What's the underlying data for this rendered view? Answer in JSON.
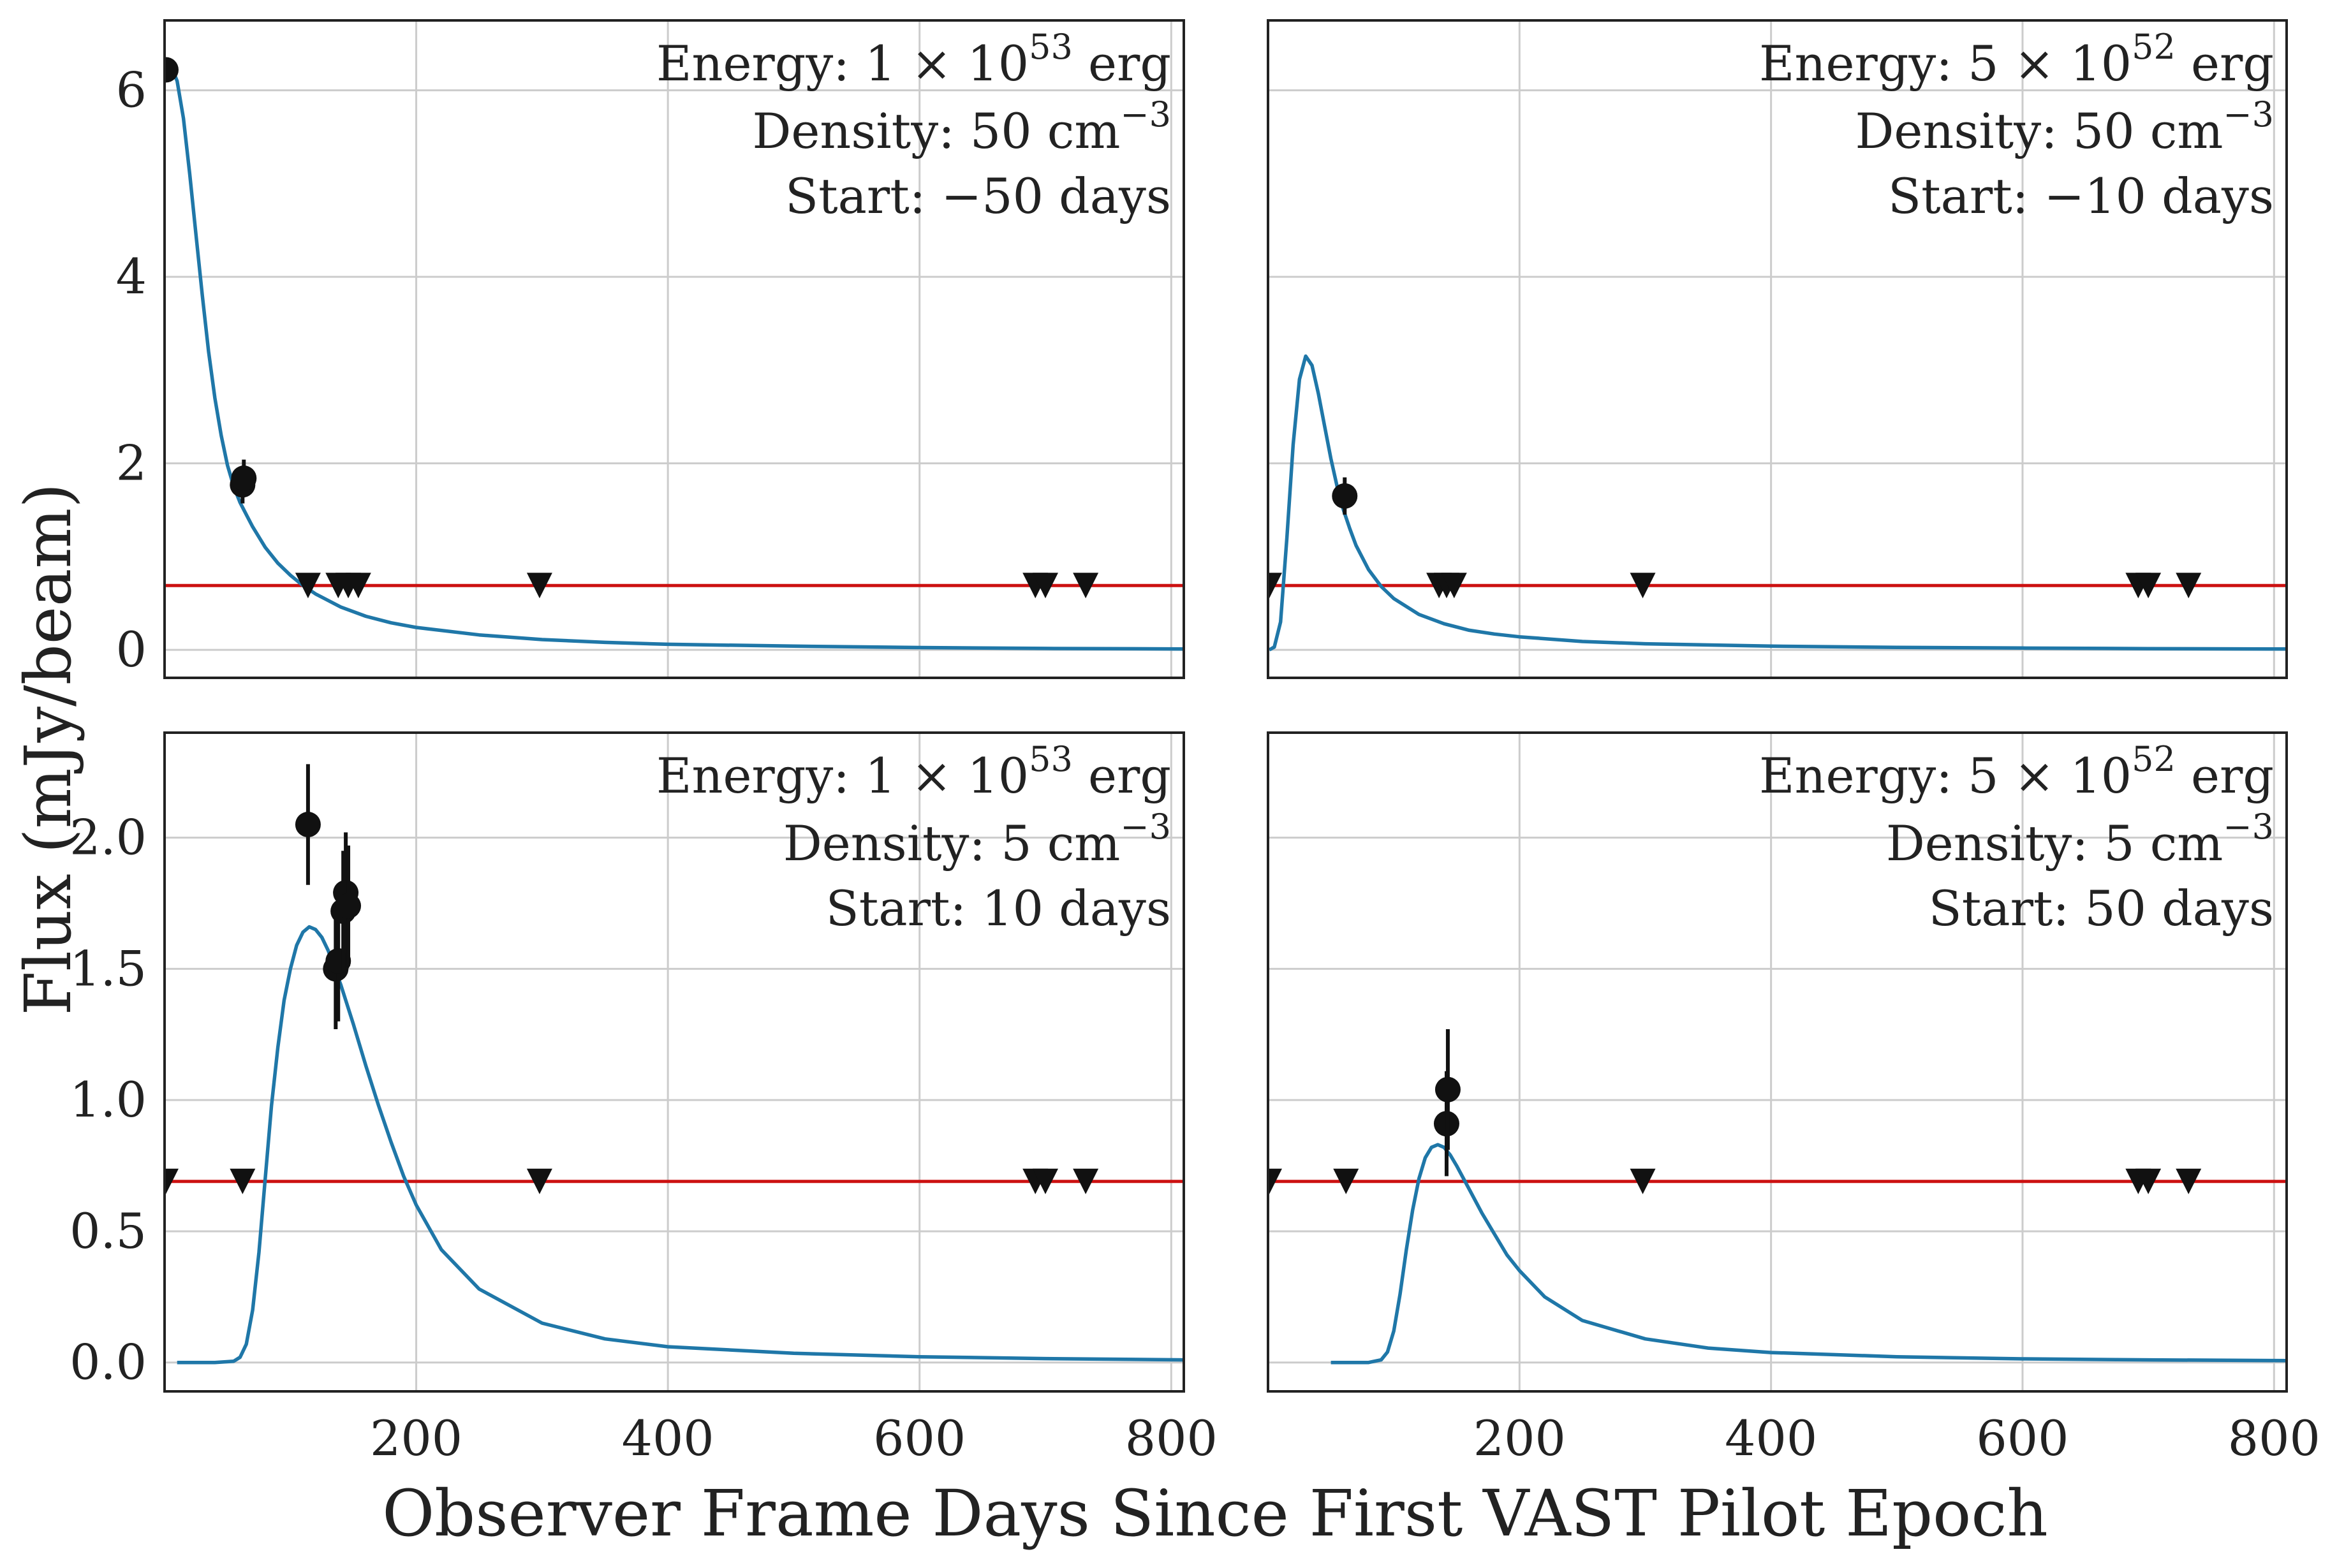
{
  "colors": {
    "model_line": "#1f77a8",
    "limit_line": "#cc1111",
    "points": "#111111",
    "grid": "#cccccc",
    "frame": "#222222"
  },
  "figure": {
    "xlabel": "Observer Frame Days Since First VAST Pilot Epoch",
    "ylabel": "Flux (mJy/beam)"
  },
  "chart_data": [
    {
      "type": "line",
      "panel": "top-left",
      "annotation": {
        "energy_prefix": "Energy: 1",
        "energy_exp": "53",
        "energy_unit": "erg",
        "density_prefix": "Density: 50 cm",
        "density_exp": "−3",
        "start": "Start: −50 days"
      },
      "xlim": [
        0,
        810
      ],
      "ylim": [
        -0.3,
        6.75
      ],
      "xticks": [
        200,
        400,
        600,
        800
      ],
      "xtick_labels": [
        "200",
        "400",
        "600",
        "800"
      ],
      "yticks": [
        0,
        2,
        4,
        6
      ],
      "ytick_labels": [
        "0",
        "2",
        "4",
        "6"
      ],
      "show_xtick_labels": false,
      "show_ytick_labels": true,
      "threshold": 0.69,
      "model": {
        "x": [
          1,
          5,
          10,
          15,
          20,
          25,
          30,
          35,
          40,
          45,
          50,
          55,
          60,
          65,
          70,
          80,
          90,
          100,
          110,
          120,
          140,
          160,
          180,
          200,
          250,
          300,
          350,
          400,
          500,
          600,
          700,
          810
        ],
        "y": [
          6.25,
          6.27,
          6.1,
          5.7,
          5.1,
          4.45,
          3.8,
          3.2,
          2.7,
          2.3,
          1.98,
          1.75,
          1.58,
          1.45,
          1.32,
          1.1,
          0.93,
          0.8,
          0.69,
          0.6,
          0.46,
          0.36,
          0.29,
          0.24,
          0.16,
          0.11,
          0.08,
          0.06,
          0.04,
          0.025,
          0.015,
          0.01
        ]
      },
      "detections": [
        {
          "x": 1,
          "y": 6.22,
          "err": 0.1
        },
        {
          "x": 62,
          "y": 1.77,
          "err": 0.2
        },
        {
          "x": 63,
          "y": 1.84,
          "err": 0.2
        }
      ],
      "upper_limits": [
        {
          "x": 114,
          "y": 0.69
        },
        {
          "x": 138,
          "y": 0.69
        },
        {
          "x": 146,
          "y": 0.69
        },
        {
          "x": 154,
          "y": 0.69
        },
        {
          "x": 298,
          "y": 0.69
        },
        {
          "x": 692,
          "y": 0.69
        },
        {
          "x": 700,
          "y": 0.69
        },
        {
          "x": 732,
          "y": 0.69
        }
      ]
    },
    {
      "type": "line",
      "panel": "top-right",
      "annotation": {
        "energy_prefix": "Energy: 5",
        "energy_exp": "52",
        "energy_unit": "erg",
        "density_prefix": "Density: 50 cm",
        "density_exp": "−3",
        "start": "Start: −10 days"
      },
      "xlim": [
        0,
        810
      ],
      "ylim": [
        -0.3,
        6.75
      ],
      "xticks": [
        200,
        400,
        600,
        800
      ],
      "xtick_labels": [
        "200",
        "400",
        "600",
        "800"
      ],
      "yticks": [
        0,
        2,
        4,
        6
      ],
      "ytick_labels": [
        "0",
        "2",
        "4",
        "6"
      ],
      "show_xtick_labels": false,
      "show_ytick_labels": false,
      "threshold": 0.69,
      "model": {
        "x": [
          1,
          5,
          10,
          15,
          20,
          25,
          30,
          35,
          40,
          45,
          50,
          55,
          60,
          65,
          70,
          80,
          90,
          100,
          120,
          140,
          160,
          180,
          200,
          250,
          300,
          400,
          500,
          600,
          700,
          810
        ],
        "y": [
          0.0,
          0.03,
          0.3,
          1.2,
          2.2,
          2.9,
          3.15,
          3.05,
          2.75,
          2.4,
          2.05,
          1.75,
          1.5,
          1.3,
          1.12,
          0.86,
          0.68,
          0.55,
          0.38,
          0.28,
          0.21,
          0.17,
          0.14,
          0.09,
          0.065,
          0.04,
          0.027,
          0.019,
          0.013,
          0.009
        ]
      },
      "detections": [
        {
          "x": 61,
          "y": 1.65,
          "err": 0.2
        }
      ],
      "upper_limits": [
        {
          "x": 1,
          "y": 0.69
        },
        {
          "x": 136,
          "y": 0.69
        },
        {
          "x": 142,
          "y": 0.69
        },
        {
          "x": 148,
          "y": 0.69
        },
        {
          "x": 298,
          "y": 0.69
        },
        {
          "x": 692,
          "y": 0.69
        },
        {
          "x": 700,
          "y": 0.69
        },
        {
          "x": 732,
          "y": 0.69
        }
      ]
    },
    {
      "type": "line",
      "panel": "bottom-left",
      "annotation": {
        "energy_prefix": "Energy: 1",
        "energy_exp": "53",
        "energy_unit": "erg",
        "density_prefix": "Density: 5 cm",
        "density_exp": "−3",
        "start": "Start: 10 days"
      },
      "xlim": [
        0,
        810
      ],
      "ylim": [
        -0.11,
        2.4
      ],
      "xticks": [
        200,
        400,
        600,
        800
      ],
      "xtick_labels": [
        "200",
        "400",
        "600",
        "800"
      ],
      "yticks": [
        0.0,
        0.5,
        1.0,
        1.5,
        2.0
      ],
      "ytick_labels": [
        "0.0",
        "0.5",
        "1.0",
        "1.5",
        "2.0"
      ],
      "show_xtick_labels": true,
      "show_ytick_labels": true,
      "threshold": 0.69,
      "model": {
        "x": [
          10,
          40,
          55,
          60,
          65,
          70,
          75,
          80,
          85,
          90,
          95,
          100,
          105,
          110,
          115,
          120,
          125,
          130,
          140,
          150,
          160,
          170,
          180,
          190,
          200,
          220,
          250,
          300,
          350,
          400,
          500,
          600,
          700,
          810
        ],
        "y": [
          0.0,
          0.0,
          0.005,
          0.02,
          0.07,
          0.2,
          0.42,
          0.7,
          0.98,
          1.2,
          1.38,
          1.5,
          1.59,
          1.64,
          1.66,
          1.65,
          1.62,
          1.57,
          1.44,
          1.29,
          1.13,
          0.98,
          0.84,
          0.71,
          0.6,
          0.43,
          0.28,
          0.15,
          0.09,
          0.06,
          0.035,
          0.022,
          0.015,
          0.01
        ]
      },
      "detections": [
        {
          "x": 114,
          "y": 2.05,
          "err": 0.23
        },
        {
          "x": 136,
          "y": 1.5,
          "err": 0.23
        },
        {
          "x": 138,
          "y": 1.53,
          "err": 0.23
        },
        {
          "x": 142,
          "y": 1.72,
          "err": 0.23
        },
        {
          "x": 144,
          "y": 1.79,
          "err": 0.23
        },
        {
          "x": 146,
          "y": 1.74,
          "err": 0.23
        }
      ],
      "upper_limits": [
        {
          "x": 1,
          "y": 0.69
        },
        {
          "x": 62,
          "y": 0.69
        },
        {
          "x": 298,
          "y": 0.69
        },
        {
          "x": 692,
          "y": 0.69
        },
        {
          "x": 700,
          "y": 0.69
        },
        {
          "x": 732,
          "y": 0.69
        }
      ]
    },
    {
      "type": "line",
      "panel": "bottom-right",
      "annotation": {
        "energy_prefix": "Energy: 5",
        "energy_exp": "52",
        "energy_unit": "erg",
        "density_prefix": "Density: 5 cm",
        "density_exp": "−3",
        "start": "Start: 50 days"
      },
      "xlim": [
        0,
        810
      ],
      "ylim": [
        -0.11,
        2.4
      ],
      "xticks": [
        200,
        400,
        600,
        800
      ],
      "xtick_labels": [
        "200",
        "400",
        "600",
        "800"
      ],
      "yticks": [
        0.0,
        0.5,
        1.0,
        1.5,
        2.0
      ],
      "ytick_labels": [
        "0.0",
        "0.5",
        "1.0",
        "1.5",
        "2.0"
      ],
      "show_xtick_labels": true,
      "show_ytick_labels": false,
      "threshold": 0.69,
      "model": {
        "x": [
          50,
          80,
          90,
          95,
          100,
          105,
          110,
          115,
          120,
          125,
          130,
          135,
          140,
          145,
          150,
          160,
          170,
          180,
          190,
          200,
          220,
          250,
          300,
          350,
          400,
          500,
          600,
          700,
          810
        ],
        "y": [
          0.0,
          0.0,
          0.01,
          0.04,
          0.12,
          0.26,
          0.43,
          0.58,
          0.7,
          0.78,
          0.82,
          0.83,
          0.82,
          0.79,
          0.75,
          0.66,
          0.57,
          0.49,
          0.41,
          0.35,
          0.25,
          0.16,
          0.09,
          0.055,
          0.038,
          0.022,
          0.014,
          0.01,
          0.007
        ]
      },
      "detections": [
        {
          "x": 142,
          "y": 0.91,
          "err": 0.2
        },
        {
          "x": 143,
          "y": 1.04,
          "err": 0.23
        }
      ],
      "upper_limits": [
        {
          "x": 1,
          "y": 0.69
        },
        {
          "x": 62,
          "y": 0.69
        },
        {
          "x": 298,
          "y": 0.69
        },
        {
          "x": 692,
          "y": 0.69
        },
        {
          "x": 700,
          "y": 0.69
        },
        {
          "x": 732,
          "y": 0.69
        }
      ]
    }
  ]
}
